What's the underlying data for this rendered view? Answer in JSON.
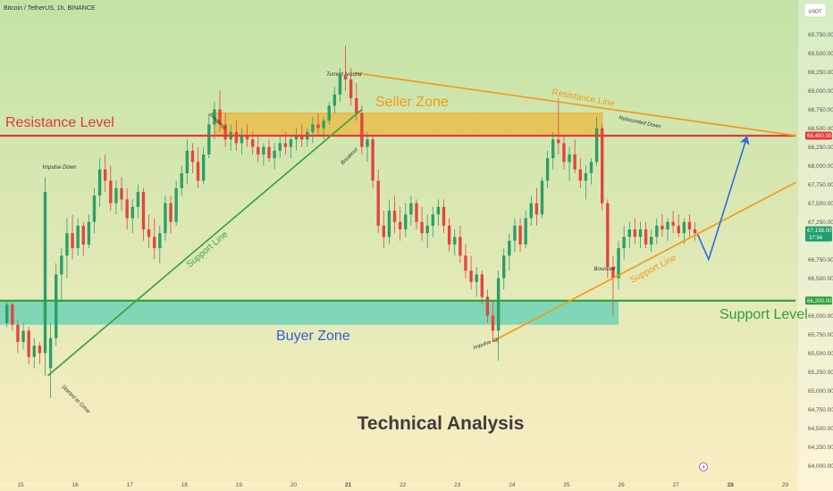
{
  "header": {
    "symbol": "Bitcoin / TetherUS, 1h, BINANCE",
    "currency": "USDT"
  },
  "colors": {
    "bg_top": "#c2e3a7",
    "bg_bottom": "#fbeec3",
    "up": "#2e9e6a",
    "down": "#e5453f",
    "resistance": "#e53935",
    "support": "#2e9e3c",
    "seller_zone": "#f5a91a",
    "buyer_zone": "#3cc9b6",
    "trend_orange": "#f59a16",
    "green_line": "#3aa545",
    "projection": "#2d6be0",
    "zone_label_orange": "#f39c12",
    "zone_label_blue": "#2d5fd6"
  },
  "chart_data": {
    "type": "candlestick",
    "title": "Technical Analysis",
    "x_tick_labels": [
      "15",
      "16",
      "17",
      "18",
      "19",
      "20",
      "21",
      "22",
      "23",
      "24",
      "25",
      "26",
      "27",
      "28",
      "29"
    ],
    "ylim": [
      64000,
      69950
    ],
    "y_tick_labels": [
      {
        "value": 69750,
        "label": "69,750.00"
      },
      {
        "value": 69500,
        "label": "69,500.00"
      },
      {
        "value": 69250,
        "label": "69,250.00"
      },
      {
        "value": 69000,
        "label": "69,000.00"
      },
      {
        "value": 68750,
        "label": "68,750.00"
      },
      {
        "value": 68500,
        "label": "68,500.00"
      },
      {
        "value": 68250,
        "label": "68,250.00"
      },
      {
        "value": 68000,
        "label": "68,000.00"
      },
      {
        "value": 67750,
        "label": "67,750.00"
      },
      {
        "value": 67500,
        "label": "67,500.00"
      },
      {
        "value": 67250,
        "label": "67,250.00"
      },
      {
        "value": 66750,
        "label": "66,750.00"
      },
      {
        "value": 66500,
        "label": "66,500.00"
      },
      {
        "value": 66000,
        "label": "66,000.00"
      },
      {
        "value": 65750,
        "label": "65,750.00"
      },
      {
        "value": 65500,
        "label": "65,500.00"
      },
      {
        "value": 65250,
        "label": "65,250.00"
      },
      {
        "value": 65000,
        "label": "65,000.00"
      },
      {
        "value": 64750,
        "label": "64,750.00"
      },
      {
        "value": 64500,
        "label": "64,500.00"
      },
      {
        "value": 64250,
        "label": "64,250.00"
      },
      {
        "value": 64000,
        "label": "64,000.00"
      }
    ],
    "price_badges": [
      {
        "value": 68400,
        "label": "68,400.00",
        "color": "#e53935"
      },
      {
        "value": 66200,
        "label": "66,200.00",
        "color": "#2e9e3c"
      },
      {
        "value": 67138,
        "label": "67,138.00",
        "sub": "37:34",
        "color": "#1e9e6e"
      }
    ],
    "levels": {
      "resistance_level": 68400,
      "support_level": 66200,
      "resistance_label": "Resistance Level",
      "support_label": "Support Level"
    },
    "zones": {
      "seller": {
        "label": "Seller Zone",
        "x_from": 18.55,
        "x_to": 25.65,
        "y_from": 68400,
        "y_to": 68700
      },
      "buyer": {
        "label": "Buyer Zone",
        "x_from": 14.75,
        "x_to": 25.95,
        "y_from": 65880,
        "y_to": 66200
      }
    },
    "trendlines": [
      {
        "name": "Support Line",
        "color": "green",
        "points": [
          [
            15.5,
            65200
          ],
          [
            21.25,
            68750
          ]
        ]
      },
      {
        "name": "Resistance Line",
        "color": "orange",
        "points": [
          [
            21.1,
            69240
          ],
          [
            29.2,
            68400
          ]
        ]
      },
      {
        "name": "Support Line",
        "color": "orange",
        "points": [
          [
            23.65,
            65660
          ],
          [
            29.2,
            67780
          ]
        ]
      }
    ],
    "projection": {
      "points": [
        [
          27.4,
          67080
        ],
        [
          27.6,
          66750
        ],
        [
          28.3,
          68380
        ]
      ]
    },
    "annotations": [
      {
        "text": "Impulse Down",
        "x": 15.4,
        "y": 67960
      },
      {
        "text": "Started to Grow",
        "x": 15.75,
        "y": 65050
      },
      {
        "text": "Breakout",
        "x": 18.45,
        "y": 68680
      },
      {
        "text": "Turned Around",
        "x": 20.6,
        "y": 69200
      },
      {
        "text": "Breakout",
        "x": 20.9,
        "y": 68010
      },
      {
        "text": "Impulse Up",
        "x": 23.3,
        "y": 65550
      },
      {
        "text": "Bounced",
        "x": 25.5,
        "y": 66600
      },
      {
        "text": "Rebounded Down",
        "x": 25.95,
        "y": 68620
      }
    ],
    "candles": [
      [
        14.75,
        65900,
        66200,
        65850,
        66150
      ],
      [
        14.85,
        66150,
        66180,
        65800,
        65880
      ],
      [
        14.95,
        65880,
        65950,
        65500,
        65650
      ],
      [
        15.05,
        65650,
        65900,
        65550,
        65800
      ],
      [
        15.15,
        65800,
        65850,
        65350,
        65450
      ],
      [
        15.25,
        65450,
        65700,
        65300,
        65600
      ],
      [
        15.35,
        65600,
        65650,
        65350,
        65500
      ],
      [
        15.45,
        65500,
        67850,
        65200,
        67650
      ],
      [
        15.55,
        65300,
        65900,
        64900,
        65700
      ],
      [
        15.65,
        65700,
        66700,
        65600,
        66550
      ],
      [
        15.75,
        66550,
        66900,
        66200,
        66800
      ],
      [
        15.85,
        66800,
        67300,
        66500,
        67100
      ],
      [
        15.95,
        67100,
        67350,
        66750,
        66900
      ],
      [
        16.05,
        66900,
        67300,
        66800,
        67200
      ],
      [
        16.15,
        67200,
        67250,
        66800,
        66950
      ],
      [
        16.25,
        66950,
        67350,
        66900,
        67250
      ],
      [
        16.35,
        67250,
        67700,
        67100,
        67600
      ],
      [
        16.45,
        67600,
        68100,
        67450,
        67950
      ],
      [
        16.55,
        67950,
        68150,
        67650,
        67800
      ],
      [
        16.65,
        67800,
        68000,
        67400,
        67500
      ],
      [
        16.75,
        67500,
        67800,
        67350,
        67700
      ],
      [
        16.85,
        67700,
        67850,
        67400,
        67550
      ],
      [
        16.95,
        67550,
        67700,
        67150,
        67300
      ],
      [
        17.05,
        67300,
        67550,
        67100,
        67450
      ],
      [
        17.15,
        67450,
        67750,
        67300,
        67650
      ],
      [
        17.25,
        67650,
        67700,
        67000,
        67150
      ],
      [
        17.35,
        67150,
        67350,
        66900,
        67050
      ],
      [
        17.45,
        67050,
        67300,
        66750,
        66900
      ],
      [
        17.55,
        66900,
        67200,
        66700,
        67100
      ],
      [
        17.65,
        67100,
        67600,
        67000,
        67500
      ],
      [
        17.75,
        67500,
        67600,
        67100,
        67250
      ],
      [
        17.85,
        67250,
        67800,
        67200,
        67700
      ],
      [
        17.95,
        67700,
        68000,
        67600,
        67900
      ],
      [
        18.05,
        67900,
        68350,
        67750,
        68200
      ],
      [
        18.15,
        68200,
        68300,
        67900,
        68050
      ],
      [
        18.25,
        68050,
        68250,
        67700,
        67800
      ],
      [
        18.35,
        67800,
        68250,
        67750,
        68150
      ],
      [
        18.45,
        68150,
        68700,
        68100,
        68550
      ],
      [
        18.55,
        68550,
        68850,
        68350,
        68750
      ],
      [
        18.65,
        68750,
        69000,
        68450,
        68550
      ],
      [
        18.75,
        68550,
        68700,
        68250,
        68350
      ],
      [
        18.85,
        68350,
        68550,
        68200,
        68450
      ],
      [
        18.95,
        68450,
        68600,
        68200,
        68300
      ],
      [
        19.05,
        68300,
        68500,
        68150,
        68400
      ],
      [
        19.15,
        68400,
        68550,
        68250,
        68350
      ],
      [
        19.25,
        68350,
        68450,
        68150,
        68250
      ],
      [
        19.35,
        68250,
        68400,
        68050,
        68150
      ],
      [
        19.45,
        68150,
        68300,
        68000,
        68250
      ],
      [
        19.55,
        68250,
        68350,
        68050,
        68100
      ],
      [
        19.65,
        68100,
        68300,
        67950,
        68200
      ],
      [
        19.75,
        68200,
        68400,
        68100,
        68300
      ],
      [
        19.85,
        68300,
        68450,
        68150,
        68250
      ],
      [
        19.95,
        68250,
        68400,
        68100,
        68350
      ],
      [
        20.05,
        68350,
        68500,
        68200,
        68400
      ],
      [
        20.15,
        68400,
        68550,
        68250,
        68350
      ],
      [
        20.25,
        68350,
        68500,
        68250,
        68450
      ],
      [
        20.35,
        68450,
        68650,
        68300,
        68550
      ],
      [
        20.45,
        68550,
        68700,
        68400,
        68500
      ],
      [
        20.55,
        68500,
        68650,
        68350,
        68600
      ],
      [
        20.65,
        68600,
        68850,
        68550,
        68800
      ],
      [
        20.75,
        68800,
        69050,
        68700,
        68950
      ],
      [
        20.85,
        68950,
        69300,
        68850,
        69200
      ],
      [
        20.95,
        69200,
        69600,
        69000,
        69150
      ],
      [
        21.05,
        69150,
        69300,
        68800,
        68900
      ],
      [
        21.15,
        68900,
        69100,
        68600,
        68700
      ],
      [
        21.25,
        68700,
        68800,
        68150,
        68250
      ],
      [
        21.35,
        68250,
        68450,
        68050,
        68350
      ],
      [
        21.45,
        68350,
        68400,
        67700,
        67800
      ],
      [
        21.55,
        67800,
        67950,
        67100,
        67200
      ],
      [
        21.65,
        67200,
        67400,
        66900,
        67050
      ],
      [
        21.75,
        67050,
        67550,
        66950,
        67400
      ],
      [
        21.85,
        67400,
        67600,
        67100,
        67250
      ],
      [
        21.95,
        67250,
        67450,
        67000,
        67150
      ],
      [
        22.05,
        67150,
        67500,
        67050,
        67350
      ],
      [
        22.15,
        67350,
        67600,
        67200,
        67500
      ],
      [
        22.25,
        67500,
        67550,
        67150,
        67250
      ],
      [
        22.35,
        67250,
        67450,
        67000,
        67100
      ],
      [
        22.45,
        67100,
        67350,
        66900,
        67200
      ],
      [
        22.55,
        67200,
        67450,
        67050,
        67350
      ],
      [
        22.65,
        67350,
        67550,
        67200,
        67450
      ],
      [
        22.75,
        67450,
        67550,
        67100,
        67200
      ],
      [
        22.85,
        67200,
        67300,
        66850,
        66950
      ],
      [
        22.95,
        66950,
        67150,
        66800,
        67050
      ],
      [
        23.05,
        67050,
        67200,
        66700,
        66800
      ],
      [
        23.15,
        66800,
        66950,
        66500,
        66600
      ],
      [
        23.25,
        66600,
        66800,
        66350,
        66450
      ],
      [
        23.35,
        66450,
        66650,
        66250,
        66550
      ],
      [
        23.45,
        66550,
        66600,
        66150,
        66250
      ],
      [
        23.55,
        66250,
        66350,
        65900,
        66000
      ],
      [
        23.65,
        66000,
        66200,
        65650,
        65800
      ],
      [
        23.75,
        65800,
        66600,
        65400,
        66500
      ],
      [
        23.85,
        66500,
        66900,
        66350,
        66800
      ],
      [
        23.95,
        66800,
        67100,
        66600,
        67000
      ],
      [
        24.05,
        67000,
        67300,
        66850,
        67200
      ],
      [
        24.15,
        67200,
        67300,
        66850,
        66950
      ],
      [
        24.25,
        66950,
        67400,
        66900,
        67300
      ],
      [
        24.35,
        67300,
        67600,
        67200,
        67500
      ],
      [
        24.45,
        67500,
        67700,
        67200,
        67350
      ],
      [
        24.55,
        67350,
        67850,
        67300,
        67800
      ],
      [
        24.65,
        67800,
        68200,
        67700,
        68100
      ],
      [
        24.75,
        68100,
        68450,
        67950,
        68350
      ],
      [
        24.85,
        68350,
        68900,
        68150,
        68300
      ],
      [
        24.95,
        68300,
        68400,
        67950,
        68050
      ],
      [
        25.05,
        68050,
        68250,
        67800,
        68150
      ],
      [
        25.15,
        68150,
        68350,
        67900,
        67950
      ],
      [
        25.25,
        67950,
        68100,
        67700,
        67800
      ],
      [
        25.35,
        67800,
        68000,
        67550,
        67900
      ],
      [
        25.45,
        67900,
        68100,
        67750,
        68050
      ],
      [
        25.55,
        68050,
        68650,
        68000,
        68500
      ],
      [
        25.65,
        68500,
        68550,
        67400,
        67500
      ],
      [
        25.75,
        67500,
        67550,
        66500,
        66650
      ],
      [
        25.85,
        66650,
        66800,
        66000,
        66500
      ],
      [
        25.95,
        66500,
        67000,
        66350,
        66900
      ],
      [
        26.05,
        66900,
        67200,
        66750,
        67050
      ],
      [
        26.15,
        67050,
        67250,
        66900,
        67150
      ],
      [
        26.25,
        67150,
        67300,
        66950,
        67050
      ],
      [
        26.35,
        67050,
        67250,
        66900,
        67150
      ],
      [
        26.45,
        67150,
        67250,
        66900,
        66950
      ],
      [
        26.55,
        66950,
        67150,
        66850,
        67050
      ],
      [
        26.65,
        67050,
        67300,
        66950,
        67200
      ],
      [
        26.75,
        67200,
        67350,
        67050,
        67150
      ],
      [
        26.85,
        67150,
        67300,
        67000,
        67250
      ],
      [
        26.95,
        67250,
        67400,
        67100,
        67200
      ],
      [
        27.05,
        67200,
        67350,
        67050,
        67100
      ],
      [
        27.15,
        67100,
        67300,
        66950,
        67250
      ],
      [
        27.25,
        67250,
        67350,
        67050,
        67150
      ],
      [
        27.35,
        67150,
        67250,
        67000,
        67100
      ]
    ]
  }
}
